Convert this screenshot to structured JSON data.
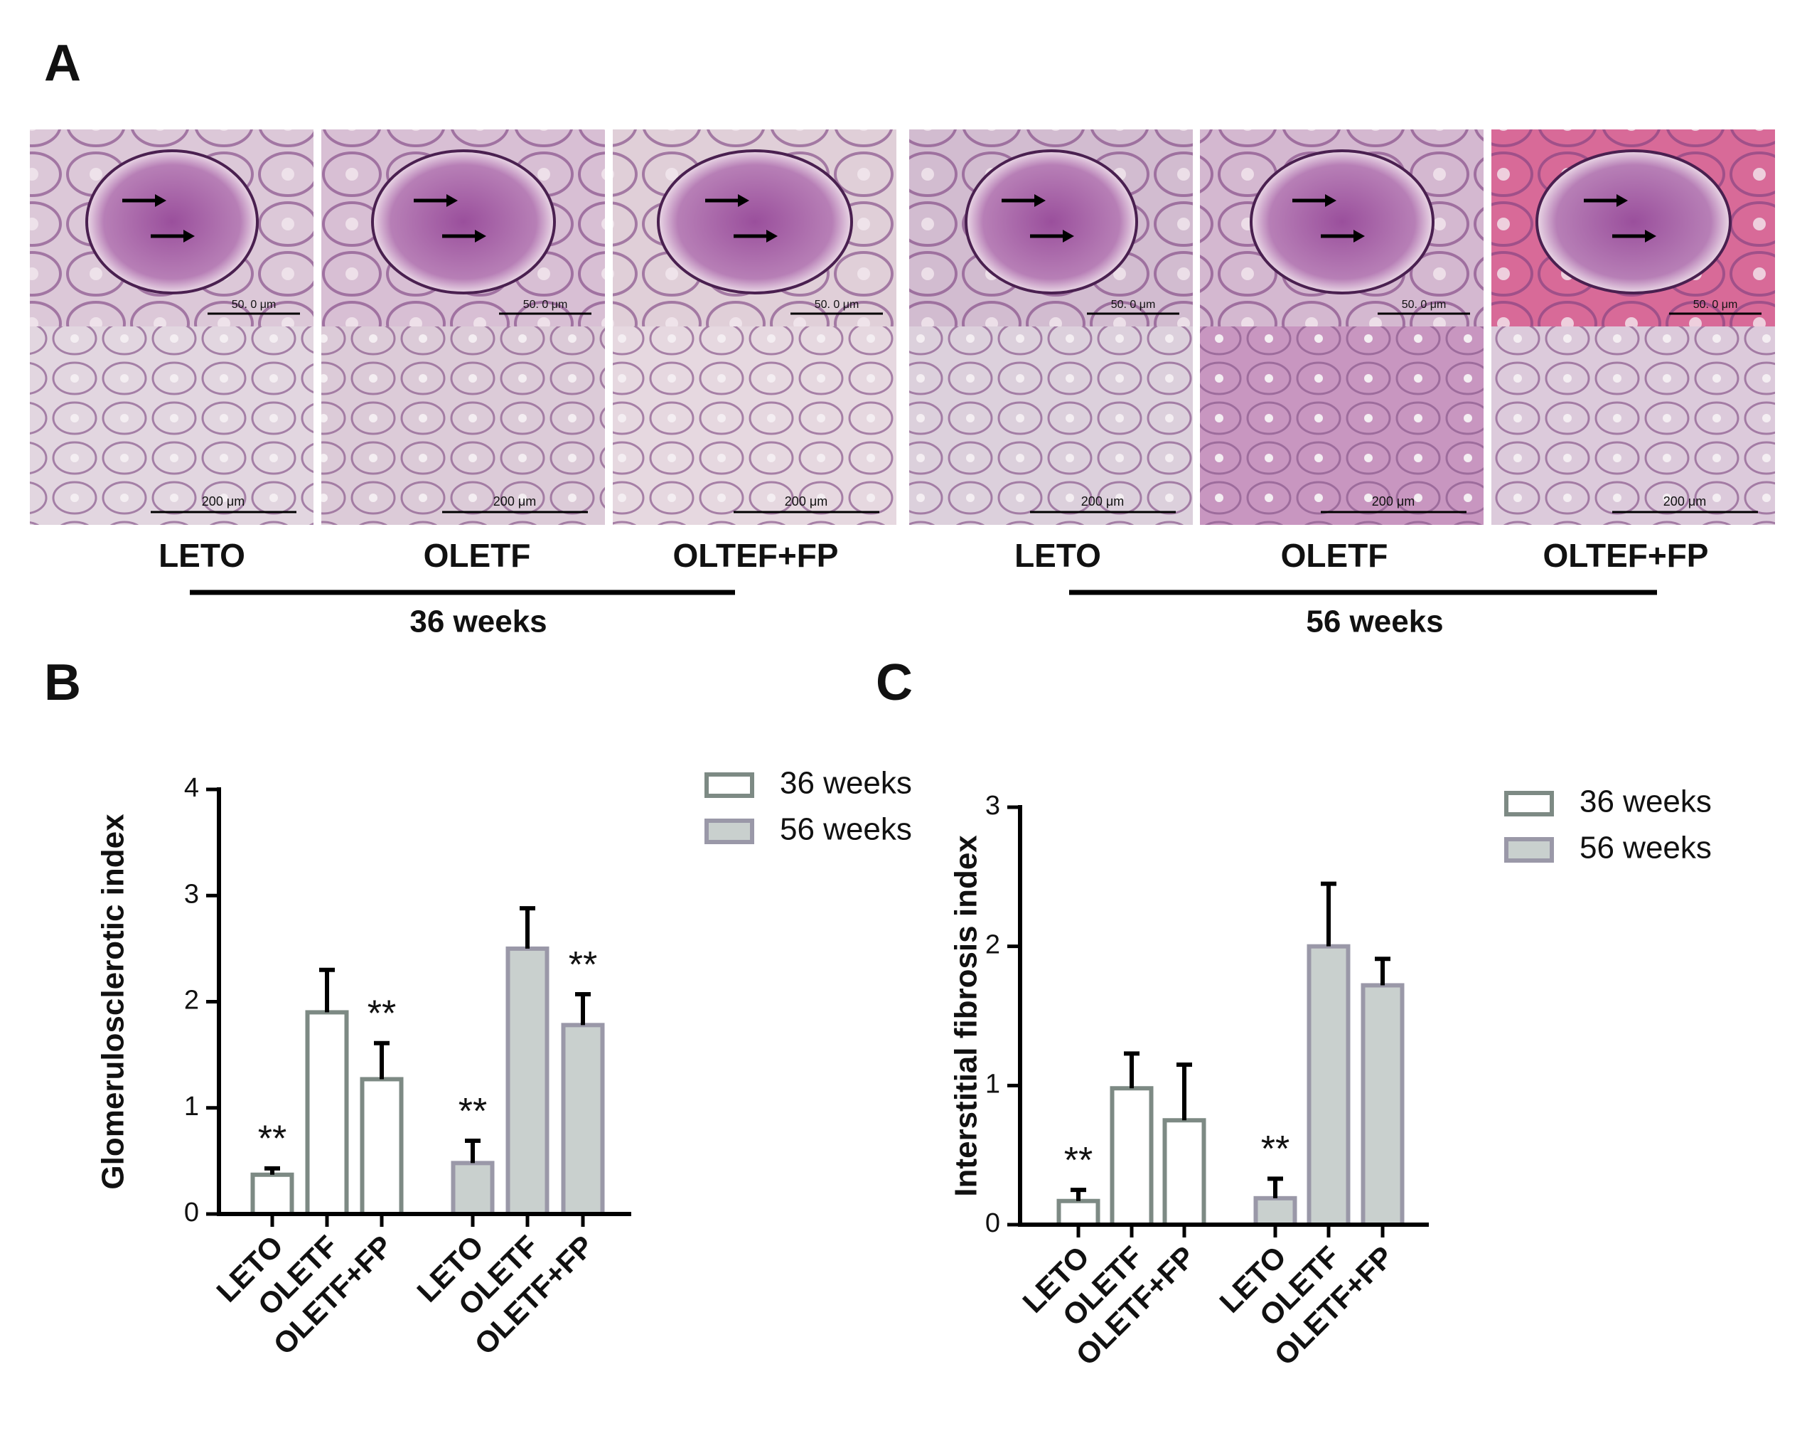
{
  "panel_a": {
    "label": "A",
    "columns": [
      "LETO",
      "OLETF",
      "OLTEF+FP",
      "LETO",
      "OLETF",
      "OLTEF+FP"
    ],
    "groups": [
      "36 weeks",
      "56 weeks"
    ],
    "scale_bars": [
      "50. 0 μm",
      "200 μm"
    ]
  },
  "chart_data": [
    {
      "type": "bar",
      "panel": "B",
      "ylabel": "Glomerulosclerotic index",
      "categories": [
        "LETO",
        "OLETF",
        "OLETF+FP",
        "LETO",
        "OLETF",
        "OLETF+FP"
      ],
      "series": [
        {
          "name": "36 weeks",
          "color": "#ffffff",
          "edgecolor": "#7d8a84",
          "values": [
            0.37,
            1.9,
            1.27,
            null,
            null,
            null
          ],
          "errors": [
            0.06,
            0.4,
            0.34,
            null,
            null,
            null
          ]
        },
        {
          "name": "56 weeks",
          "color": "#c9d0ce",
          "edgecolor": "#9a98a8",
          "values": [
            null,
            null,
            null,
            0.48,
            2.5,
            1.78
          ],
          "errors": [
            null,
            null,
            null,
            0.21,
            0.38,
            0.29
          ]
        }
      ],
      "significance": [
        "**",
        null,
        "**",
        "**",
        null,
        "**"
      ],
      "ylim": [
        0,
        4
      ],
      "yticks": [
        0,
        1,
        2,
        3,
        4
      ]
    },
    {
      "type": "bar",
      "panel": "C",
      "ylabel": "Interstitial fibrosis index",
      "categories": [
        "LETO",
        "OLETF",
        "OLETF+FP",
        "LETO",
        "OLETF",
        "OLETF+FP"
      ],
      "series": [
        {
          "name": "36 weeks",
          "color": "#ffffff",
          "edgecolor": "#7d8a84",
          "values": [
            0.17,
            0.98,
            0.75,
            null,
            null,
            null
          ],
          "errors": [
            0.08,
            0.25,
            0.4,
            null,
            null,
            null
          ]
        },
        {
          "name": "56 weeks",
          "color": "#c9d0ce",
          "edgecolor": "#9a98a8",
          "values": [
            null,
            null,
            null,
            0.19,
            2.0,
            1.72
          ],
          "errors": [
            null,
            null,
            null,
            0.14,
            0.45,
            0.19
          ]
        }
      ],
      "significance": [
        "**",
        null,
        null,
        "**",
        null,
        null
      ],
      "ylim": [
        0,
        3
      ],
      "yticks": [
        0,
        1,
        2,
        3
      ]
    }
  ]
}
